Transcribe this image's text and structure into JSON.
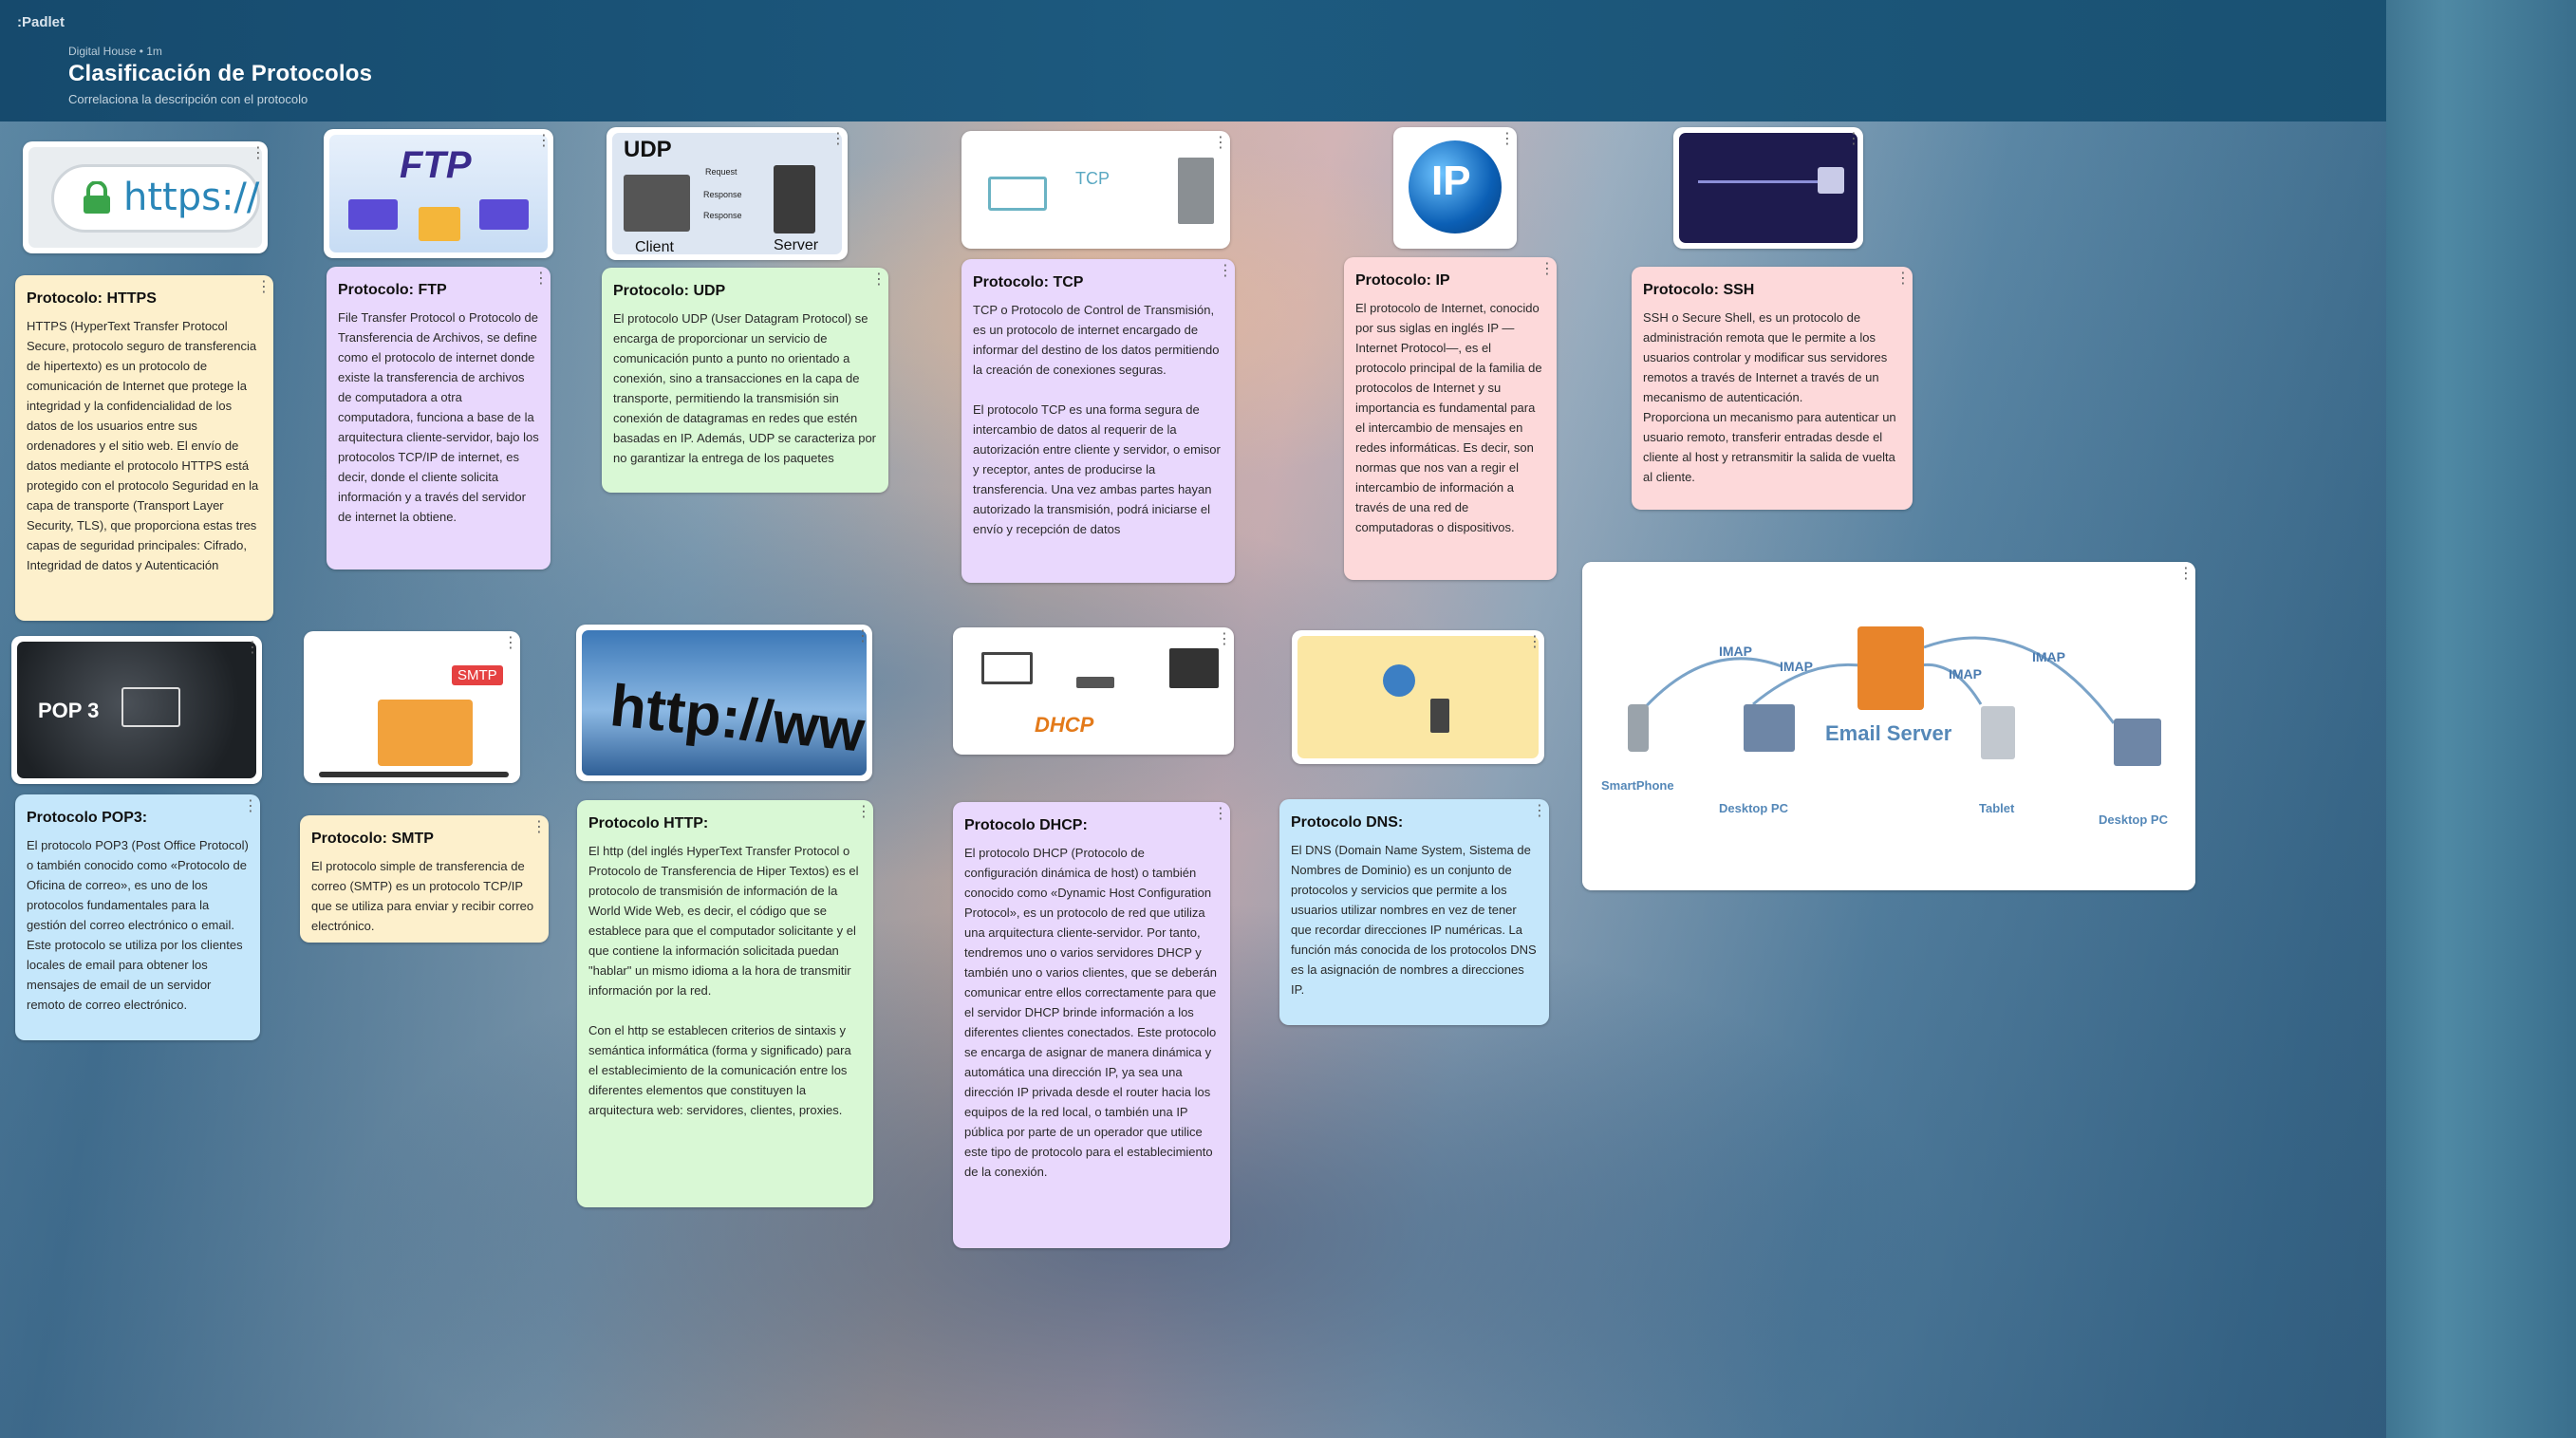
{
  "header": {
    "logo": ":Padlet",
    "meta": "Digital House • 1m",
    "title": "Clasificación de Protocolos",
    "subtitle": "Correlaciona la descripción con el protocolo"
  },
  "image_labels": {
    "https": "https://",
    "ftp": "FTP",
    "udp_title": "UDP",
    "udp_client": "Client",
    "udp_server": "Server",
    "udp_request": "Request",
    "udp_response": "Response",
    "tcp": "TCP",
    "ip": "IP",
    "pop3": "POP 3",
    "smtp": "SMTP",
    "http": "http://ww",
    "dhcp": "DHCP",
    "email_server": "Email Server",
    "imap": "IMAP",
    "smartphone": "SmartPhone",
    "desktop_pc": "Desktop PC",
    "tablet": "Tablet"
  },
  "posts": {
    "https": {
      "title": "Protocolo: HTTPS",
      "body": "HTTPS (HyperText Transfer Protocol Secure, protocolo seguro de transferencia de hipertexto) es un protocolo de comunicación de Internet que protege la integridad y la confidencialidad de los datos de los usuarios entre sus ordenadores y el sitio web. El envío de datos mediante el protocolo HTTPS está protegido con el protocolo Seguridad en la capa de transporte (Transport Layer Security, TLS), que proporciona estas tres capas de seguridad principales: Cifrado, Integridad de datos y Autenticación"
    },
    "ftp": {
      "title": "Protocolo: FTP",
      "body": "File Transfer Protocol o Protocolo de Transferencia de Archivos, se define como el protocolo de internet donde existe la transferencia de archivos de computadora a otra computadora, funciona a base de la arquitectura cliente-servidor, bajo los protocolos TCP/IP de internet, es decir, donde el cliente solicita información y a través del servidor de internet la obtiene."
    },
    "udp": {
      "title": "Protocolo: UDP",
      "body": "El protocolo UDP (User Datagram Protocol) se encarga de proporcionar un servicio de comunicación punto a punto no orientado a conexión, sino a transacciones en la capa de transporte, permitiendo la transmisión sin conexión de datagramas en redes que estén basadas en IP. Además, UDP se caracteriza por no garantizar la entrega de los paquetes"
    },
    "tcp": {
      "title": "Protocolo: TCP",
      "body": "TCP o Protocolo de Control de Transmisión, es un protocolo de internet encargado de informar del destino de los datos permitiendo la creación de conexiones seguras.\n\nEl protocolo TCP es una forma segura de intercambio de datos al requerir de la autorización entre cliente y servidor, o emisor y receptor, antes de producirse la transferencia. Una vez ambas partes hayan autorizado la transmisión, podrá iniciarse el envío y recepción de datos"
    },
    "ip": {
      "title": "Protocolo: IP",
      "body": "El protocolo de Internet, conocido por sus siglas en inglés IP —Internet Protocol—, es el protocolo principal de la familia de protocolos de Internet y su importancia es fundamental para el intercambio de mensajes en redes informáticas. Es decir, son normas que nos van a regir el intercambio de información a través de una red de computadoras o dispositivos."
    },
    "ssh": {
      "title": "Protocolo: SSH",
      "body": "SSH o Secure Shell, es un protocolo de administración remota que le permite a los usuarios controlar y modificar sus servidores remotos a través de Internet a través de un mecanismo de autenticación.\nProporciona un mecanismo para autenticar un usuario remoto, transferir entradas desde el cliente al host y retransmitir la salida de vuelta al cliente."
    },
    "pop3": {
      "title": "Protocolo POP3:",
      "body": "El protocolo POP3 (Post Office Protocol) o también conocido como «Protocolo de Oficina de correo», es uno de los protocolos fundamentales para la gestión del correo electrónico o email. Este protocolo se utiliza por los clientes locales de email para obtener los mensajes de email de un servidor remoto de correo electrónico."
    },
    "smtp": {
      "title": "Protocolo: SMTP",
      "body": "El protocolo simple de transferencia de correo (SMTP) es un protocolo TCP/IP que se utiliza para enviar y recibir correo electrónico."
    },
    "http": {
      "title": "Protocolo HTTP:",
      "body": "El http (del inglés HyperText Transfer Protocol o Protocolo de Transferencia de Hiper Textos) es el protocolo de transmisión de información de la World Wide Web, es decir, el código que se establece para que el computador solicitante y el que contiene la información solicitada puedan \"hablar\" un mismo idioma a la hora de transmitir información por la red.\n\nCon el http se establecen criterios de sintaxis y semántica informática (forma y significado) para el establecimiento de la comunicación entre los diferentes elementos que constituyen la arquitectura web: servidores, clientes, proxies."
    },
    "dhcp": {
      "title": "Protocolo DHCP:",
      "body": "El protocolo DHCP (Protocolo de configuración dinámica de host) o también conocido como «Dynamic Host Configuration Protocol», es un protocolo de red que utiliza una arquitectura cliente-servidor. Por tanto, tendremos uno o varios servidores DHCP y también uno o varios clientes, que se deberán comunicar entre ellos correctamente para que el servidor DHCP brinde información a los diferentes clientes conectados. Este protocolo se encarga de asignar de manera dinámica y automática una dirección IP, ya sea una dirección IP privada desde el router hacia los equipos de la red local, o también una IP pública por parte de un operador que utilice este tipo de protocolo para el establecimiento de la conexión."
    },
    "dns": {
      "title": "Protocolo DNS:",
      "body": "El DNS (Domain Name System, Sistema de Nombres de Dominio) es un conjunto de protocolos y servicios que permite a los usuarios utilizar nombres en vez de tener que recordar direcciones IP numéricas. La función más conocida de los protocolos DNS es la asignación de nombres a direcciones IP."
    }
  },
  "colors": {
    "yellow": "#fdf0cc",
    "purple": "#e9d8fd",
    "green": "#d9f8d5",
    "pink": "#fdd9da",
    "blue": "#c5e7fb",
    "header": "#1d5a7f"
  },
  "icons": {
    "more": "⋮"
  }
}
